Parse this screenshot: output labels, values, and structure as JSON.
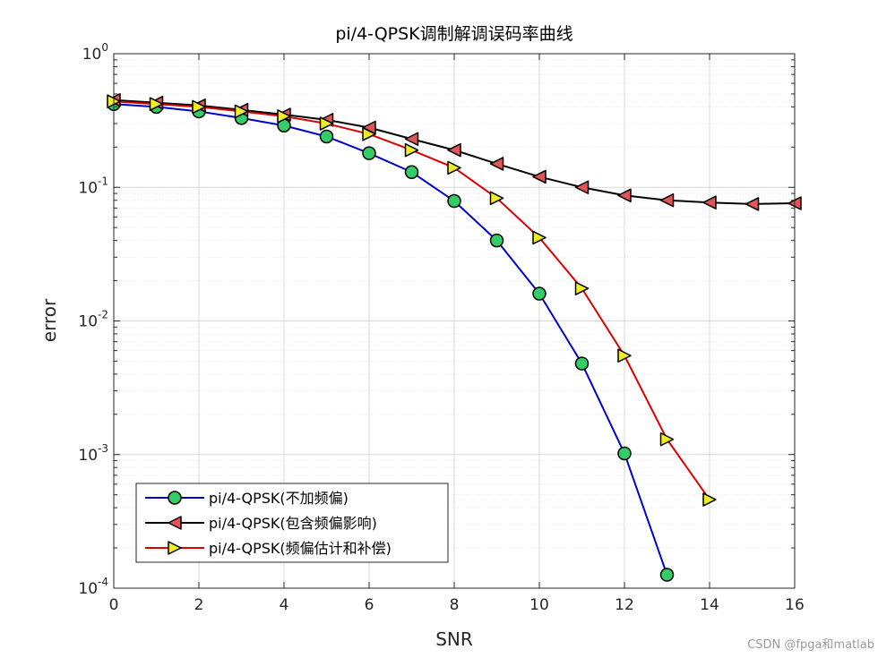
{
  "chart_data": {
    "type": "line",
    "title": "pi/4-QPSK调制解调误码率曲线",
    "xlabel": "SNR",
    "ylabel": "error",
    "xlim": [
      0,
      16
    ],
    "ylim": [
      0.0001,
      1
    ],
    "yscale": "log",
    "grid": true,
    "minor_grid": true,
    "legend_position": "bottom-left",
    "x_ticks": [
      "0",
      "2",
      "4",
      "6",
      "8",
      "10",
      "12",
      "14",
      "16"
    ],
    "y_ticks": [
      {
        "base": "10",
        "exp": "0"
      },
      {
        "base": "10",
        "exp": "-1"
      },
      {
        "base": "10",
        "exp": "-2"
      },
      {
        "base": "10",
        "exp": "-3"
      },
      {
        "base": "10",
        "exp": "-4"
      }
    ],
    "series": [
      {
        "name": "pi/4-QPSK(不加频偏)",
        "color": "#0000cc",
        "marker": "circle",
        "marker_color": "#33cc66",
        "x": [
          0,
          1,
          2,
          3,
          4,
          5,
          6,
          7,
          8,
          9,
          10,
          11,
          12,
          13
        ],
        "y": [
          0.42,
          0.4,
          0.37,
          0.33,
          0.29,
          0.24,
          0.18,
          0.13,
          0.079,
          0.04,
          0.016,
          0.0048,
          0.00102,
          0.000126
        ]
      },
      {
        "name": "pi/4-QPSK(包含频偏影响)",
        "color": "#000000",
        "marker": "triangle-left",
        "marker_color": "#e05555",
        "x": [
          0,
          1,
          2,
          3,
          4,
          5,
          6,
          7,
          8,
          9,
          10,
          11,
          12,
          13,
          14,
          15,
          16
        ],
        "y": [
          0.45,
          0.43,
          0.41,
          0.38,
          0.35,
          0.32,
          0.28,
          0.23,
          0.19,
          0.15,
          0.12,
          0.1,
          0.087,
          0.08,
          0.077,
          0.075,
          0.076
        ]
      },
      {
        "name": "pi/4-QPSK(频偏估计和补偿)",
        "color": "#dd0000",
        "marker": "triangle-right",
        "marker_color": "#eeee22",
        "x": [
          0,
          1,
          2,
          3,
          4,
          5,
          6,
          7,
          8,
          9,
          10,
          11,
          12,
          13,
          14
        ],
        "y": [
          0.44,
          0.42,
          0.4,
          0.37,
          0.34,
          0.3,
          0.25,
          0.19,
          0.14,
          0.083,
          0.042,
          0.0175,
          0.0055,
          0.0013,
          0.00046
        ]
      }
    ]
  },
  "watermark": "CSDN @fpga和matlab"
}
